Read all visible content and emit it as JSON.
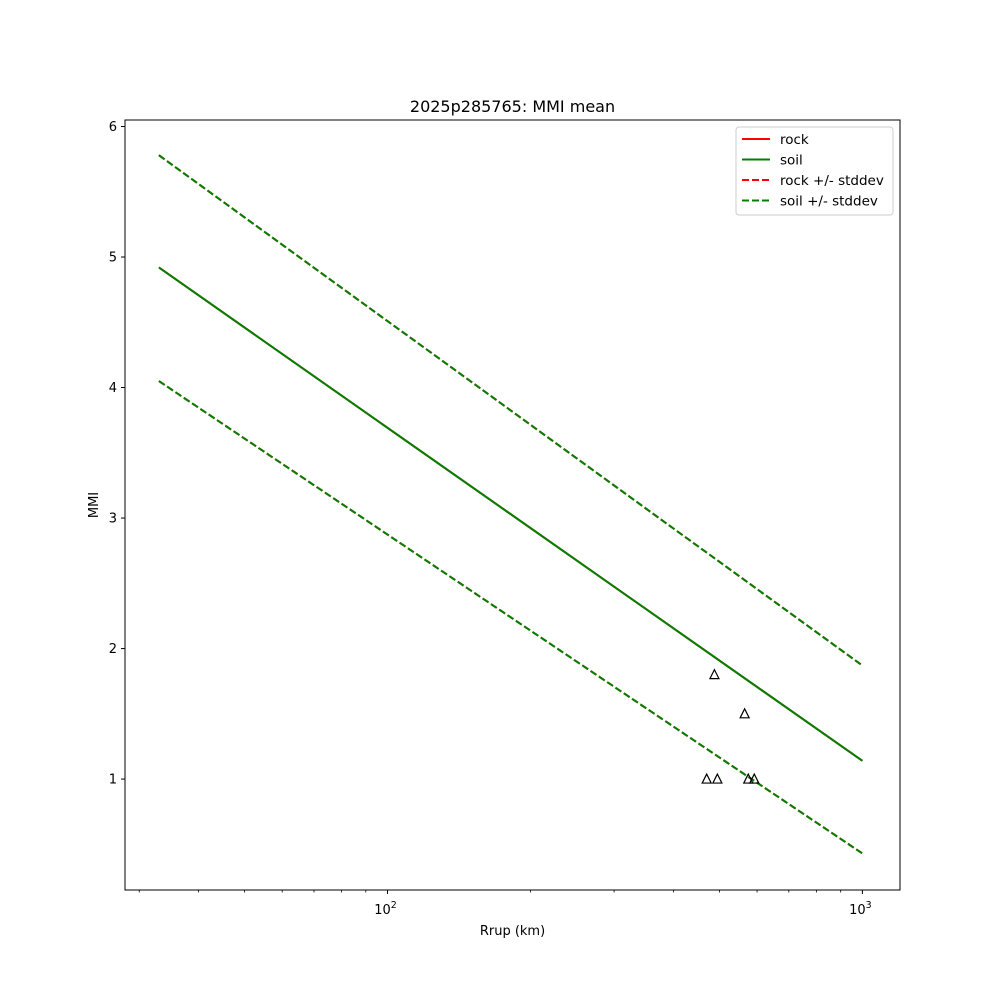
{
  "chart_data": {
    "type": "line",
    "title": "2025p285765: MMI mean",
    "xlabel": "Rrup (km)",
    "ylabel": "MMI",
    "xscale": "log",
    "xlim": [
      28,
      1200
    ],
    "ylim": [
      0.15,
      6.05
    ],
    "x_ticks": [
      {
        "value": 100,
        "base": "10",
        "exp": "2"
      },
      {
        "value": 1000,
        "base": "10",
        "exp": "3"
      }
    ],
    "y_ticks": [
      1,
      2,
      3,
      4,
      5,
      6
    ],
    "grid": false,
    "legend_position": "top-right",
    "series": [
      {
        "name": "rock",
        "color": "#ff0000",
        "style": "solid",
        "x": [
          33,
          1000
        ],
        "y": [
          4.92,
          1.14
        ]
      },
      {
        "name": "soil",
        "color": "#008000",
        "style": "solid",
        "x": [
          33,
          1000
        ],
        "y": [
          4.92,
          1.14
        ]
      },
      {
        "name": "rock +/- stddev",
        "color": "#ff0000",
        "style": "dashed",
        "x": [
          33,
          1000
        ],
        "y": [
          5.78,
          1.87
        ],
        "y2": [
          4.05,
          0.43
        ]
      },
      {
        "name": "soil +/- stddev",
        "color": "#008000",
        "style": "dashed",
        "x": [
          33,
          1000
        ],
        "y": [
          5.78,
          1.87
        ],
        "y2": [
          4.05,
          0.43
        ]
      }
    ],
    "observations": {
      "marker": "triangle",
      "color": "#000000",
      "points": [
        {
          "x": 470,
          "y": 1.0
        },
        {
          "x": 488,
          "y": 1.8
        },
        {
          "x": 495,
          "y": 1.0
        },
        {
          "x": 565,
          "y": 1.5
        },
        {
          "x": 575,
          "y": 1.0
        },
        {
          "x": 592,
          "y": 1.0
        }
      ]
    }
  }
}
